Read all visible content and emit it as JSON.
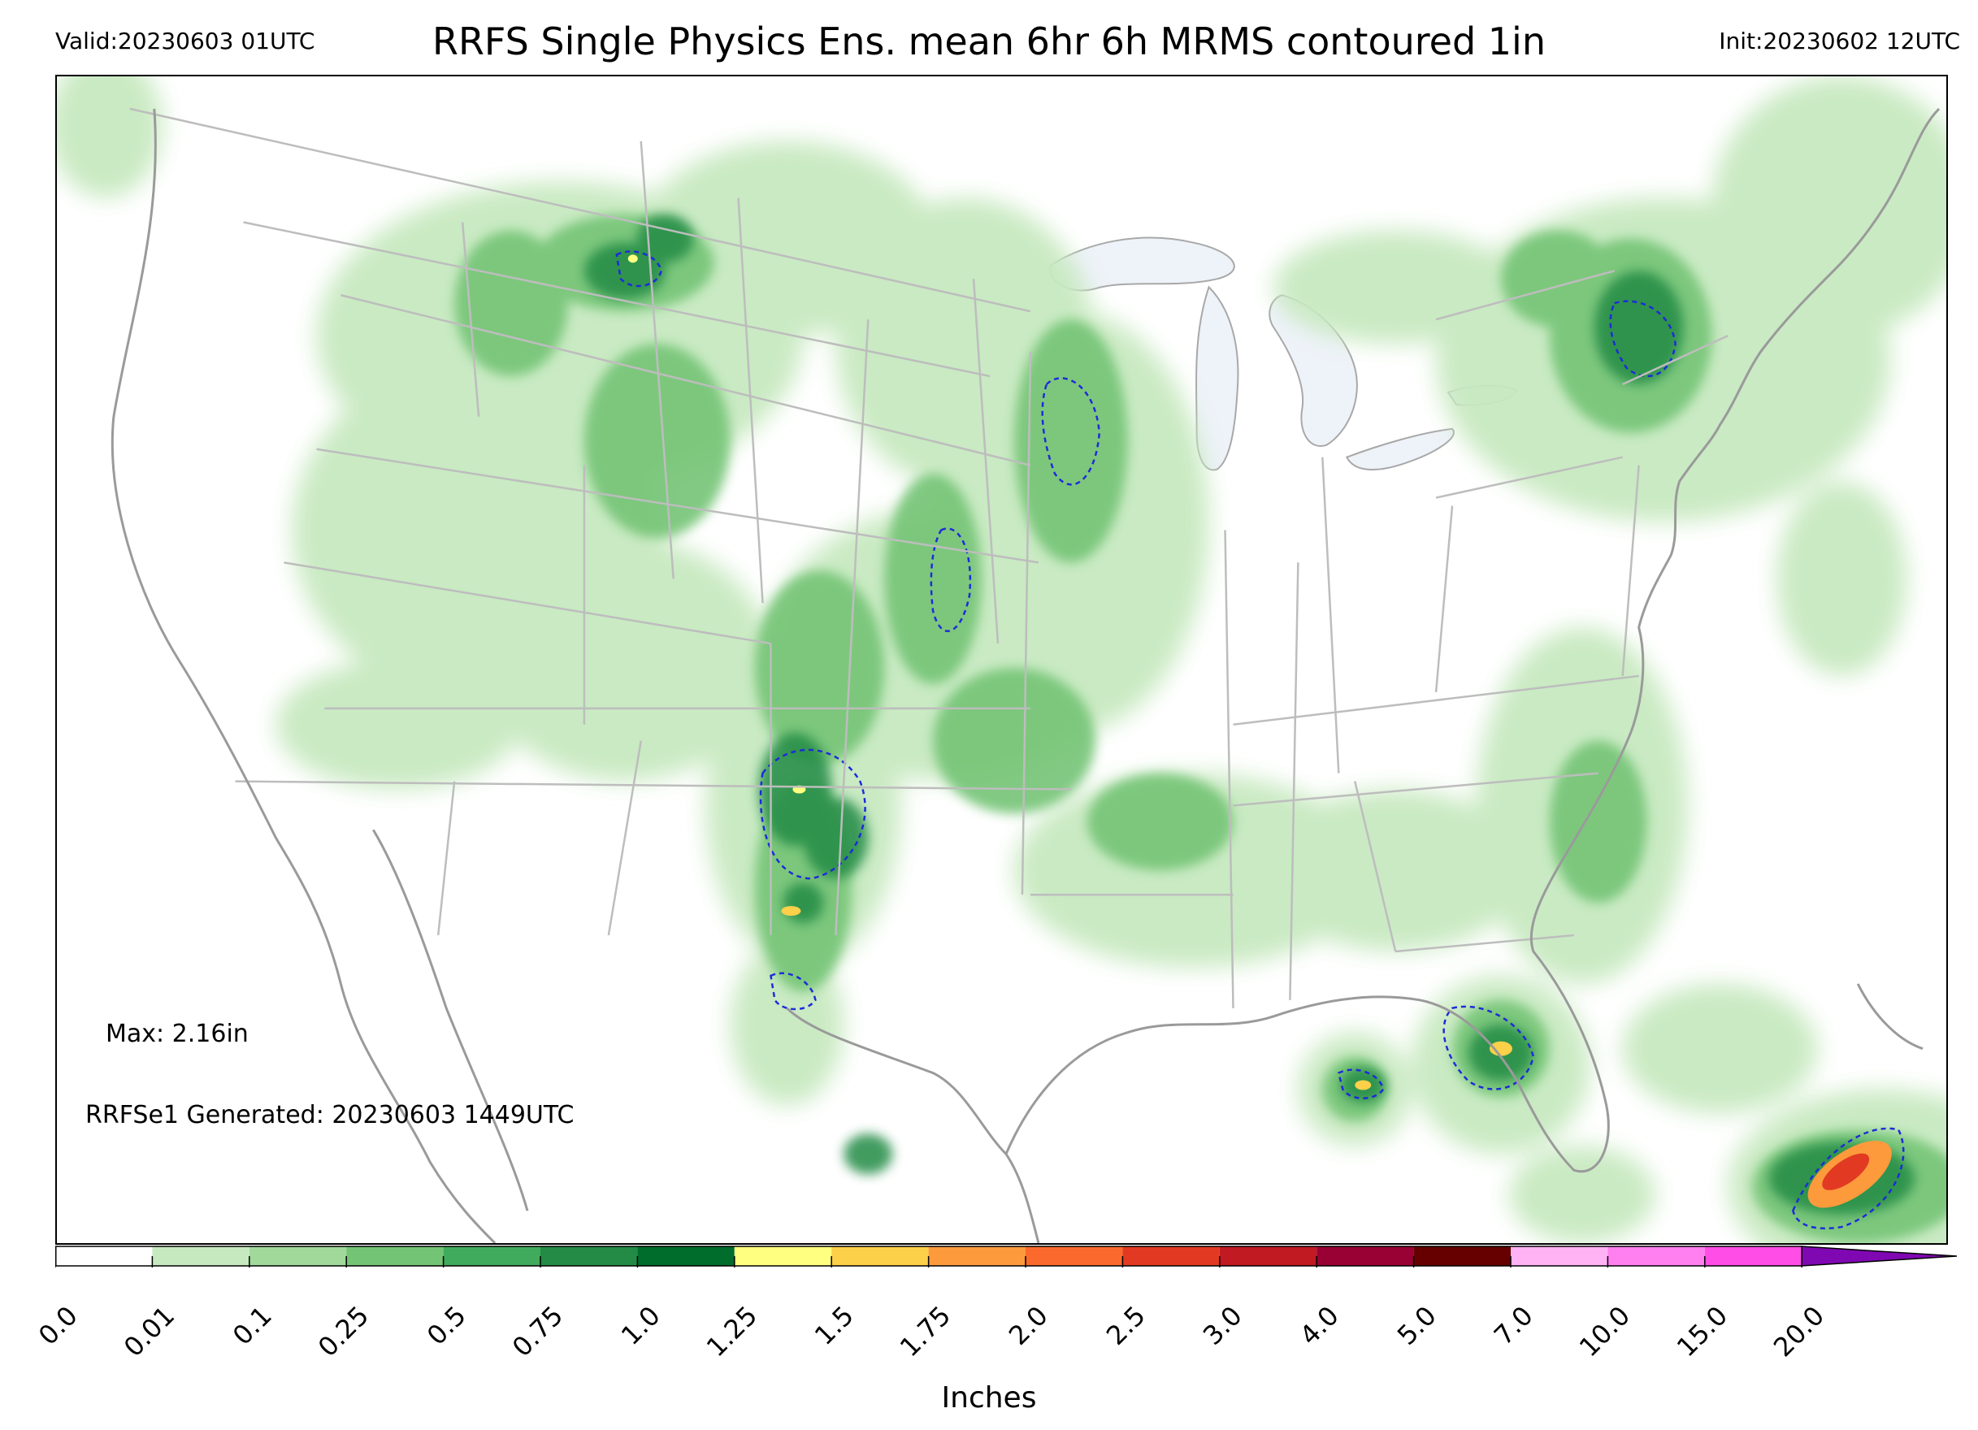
{
  "header": {
    "valid": "Valid:20230603 01UTC",
    "title": "RRFS Single Physics Ens. mean 6hr 6h MRMS contoured 1in",
    "init": "Init:20230602 12UTC"
  },
  "annotations": {
    "max": "Max: 2.16in",
    "generated": "RRFSe1 Generated: 20230603 1449UTC"
  },
  "colorbar": {
    "label": "Inches",
    "ticks": [
      "0.0",
      "0.01",
      "0.1",
      "0.25",
      "0.5",
      "0.75",
      "1.0",
      "1.25",
      "1.5",
      "1.75",
      "2.0",
      "2.5",
      "3.0",
      "4.0",
      "5.0",
      "7.0",
      "10.0",
      "15.0",
      "20.0"
    ],
    "colors": [
      "#ffffff",
      "#c7e9c0",
      "#a1d99b",
      "#74c476",
      "#41ab5d",
      "#238b45",
      "#006d2c",
      "#ffff80",
      "#fdd049",
      "#fd9a3c",
      "#fb6a2c",
      "#e23a22",
      "#c11a22",
      "#990033",
      "#660000",
      "#ffb3f5",
      "#ff80ee",
      "#ff4de6",
      "#e61adf",
      "#b30fcc",
      "#8008b3"
    ],
    "extend": "max"
  },
  "map": {
    "land_color": "#ffffff",
    "lake_color": "#f0f4fb",
    "border_color": "#b8b8b8",
    "coast_color": "#9a9a9a",
    "contour_color": "#1d2bd9",
    "contour_threshold": "1in"
  }
}
